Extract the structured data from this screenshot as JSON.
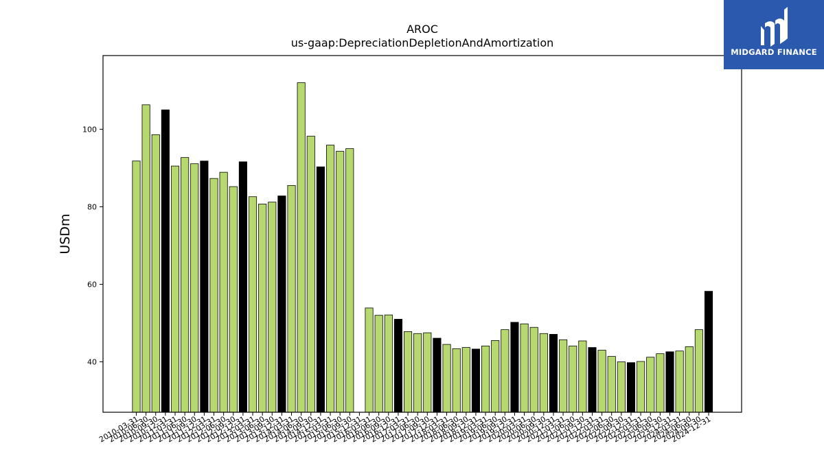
{
  "chart_data": {
    "type": "bar",
    "title": "AROC",
    "subtitle": "us-gaap:DepreciationDepletionAndAmortization",
    "ylabel": "USDm",
    "xlabel": "",
    "ylim": [
      27,
      119
    ],
    "yticks": [
      40,
      60,
      80,
      100
    ],
    "grid": false,
    "legend": "none",
    "colors": {
      "default": "#b5d96e",
      "q4": "#000000",
      "edge": "#000000"
    },
    "categories": [
      "2010-03-31",
      "2010-06-30",
      "2010-09-30",
      "2010-12-31",
      "2011-03-31",
      "2011-06-30",
      "2011-09-30",
      "2011-12-31",
      "2012-03-31",
      "2012-06-30",
      "2012-09-30",
      "2012-12-31",
      "2013-03-31",
      "2013-06-30",
      "2013-09-30",
      "2013-12-31",
      "2014-03-31",
      "2014-06-30",
      "2014-09-30",
      "2014-12-31",
      "2015-03-31",
      "2015-06-30",
      "2015-09-30",
      "2015-12-31",
      "2016-03-31",
      "2016-06-30",
      "2016-09-30",
      "2016-12-31",
      "2017-03-31",
      "2017-06-30",
      "2017-09-30",
      "2017-12-31",
      "2018-03-31",
      "2018-06-30",
      "2018-09-30",
      "2018-12-31",
      "2019-03-31",
      "2019-06-30",
      "2019-09-30",
      "2019-12-31",
      "2020-03-31",
      "2020-06-30",
      "2020-09-30",
      "2020-12-31",
      "2021-03-31",
      "2021-06-30",
      "2021-09-30",
      "2021-12-31",
      "2022-03-31",
      "2022-06-30",
      "2022-09-30",
      "2022-12-31",
      "2023-03-31",
      "2023-06-30",
      "2023-09-30",
      "2023-12-31",
      "2024-03-31",
      "2024-06-30",
      "2024-09-30",
      "2024-12-31"
    ],
    "values": [
      91.8,
      106.3,
      98.6,
      105.0,
      90.5,
      92.7,
      91.1,
      91.8,
      87.3,
      88.9,
      85.2,
      91.6,
      82.6,
      80.7,
      81.2,
      82.8,
      85.5,
      112.0,
      98.2,
      90.3,
      95.9,
      94.3,
      95.0,
      null,
      53.9,
      52.0,
      52.1,
      51.0,
      47.8,
      47.3,
      47.5,
      46.1,
      44.5,
      43.4,
      43.7,
      43.3,
      44.1,
      45.5,
      48.3,
      50.2,
      49.8,
      48.9,
      47.3,
      47.1,
      45.7,
      44.1,
      45.4,
      43.7,
      43.0,
      41.4,
      40.0,
      39.8,
      40.1,
      41.2,
      42.1,
      42.6,
      42.8,
      43.9,
      48.3,
      58.2
    ]
  },
  "logo": {
    "name": "MIDGARD FINANCE"
  }
}
